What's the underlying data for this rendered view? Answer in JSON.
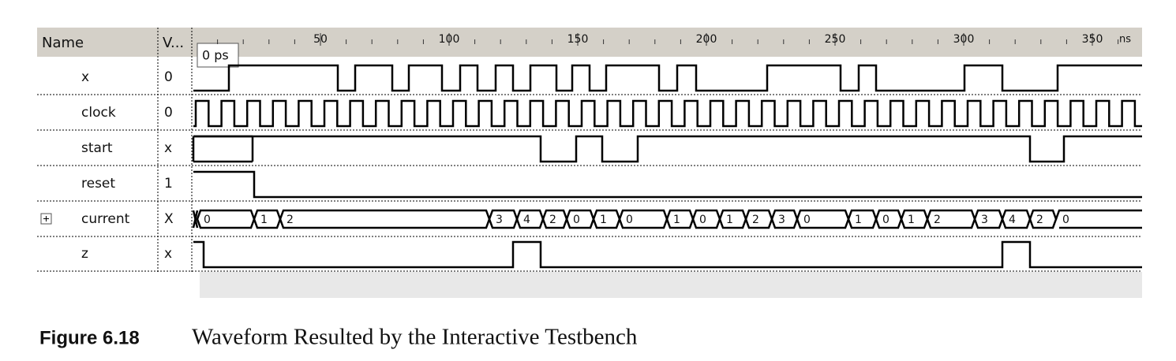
{
  "header": {
    "name": "Name",
    "value": "V...",
    "unit": "ns",
    "cursor": "0 ps"
  },
  "ruler": {
    "ticks": [
      50,
      100,
      150,
      200,
      250,
      300,
      350
    ]
  },
  "signals": [
    {
      "name": "x",
      "value": "0"
    },
    {
      "name": "clock",
      "value": "0"
    },
    {
      "name": "start",
      "value": "x"
    },
    {
      "name": "reset",
      "value": "1"
    },
    {
      "name": "current",
      "value": "X",
      "bus": [
        "0",
        "1",
        "2",
        "3",
        "4",
        "2",
        "0",
        "1",
        "0",
        "1",
        "0",
        "1",
        "2",
        "3",
        "0",
        "1",
        "0",
        "1",
        "2",
        "3",
        "4",
        "2",
        "0"
      ]
    },
    {
      "name": "z",
      "value": "x"
    }
  ],
  "caption": {
    "label": "Figure 6.18",
    "text": "Waveform Resulted by the Interactive Testbench"
  }
}
